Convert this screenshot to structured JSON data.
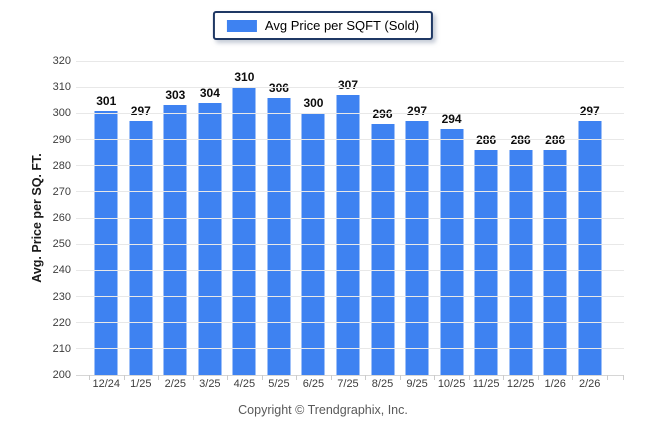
{
  "legend": {
    "label": "Avg Price per SQFT (Sold)"
  },
  "axes": {
    "y_title": "Avg. Price per SQ. FT."
  },
  "footer": {
    "copyright": "Copyright © Trendgraphix, Inc."
  },
  "colors": {
    "bar": "#3E82F1",
    "legend_border": "#1F3864",
    "gridline": "#E8E8E8",
    "baseline": "#D6D6D6",
    "tick_text": "#3D3D3D",
    "value_label": "#0D0D0D",
    "copyright_text": "#595959"
  },
  "chart_data": {
    "type": "bar",
    "title": "",
    "series_name": "Avg Price per SQFT (Sold)",
    "categories": [
      "12/24",
      "1/25",
      "2/25",
      "3/25",
      "4/25",
      "5/25",
      "6/25",
      "7/25",
      "8/25",
      "9/25",
      "10/25",
      "11/25",
      "12/25",
      "1/26",
      "2/26"
    ],
    "values": [
      301,
      297,
      303,
      304,
      310,
      306,
      300,
      307,
      296,
      297,
      294,
      286,
      286,
      286,
      297
    ],
    "data_labels_shown": true,
    "xlabel": "",
    "ylabel": "Avg. Price per SQ. FT.",
    "ylim": [
      200,
      320
    ],
    "ytick_step": 10,
    "grid": true,
    "legend_position": "top-center"
  }
}
